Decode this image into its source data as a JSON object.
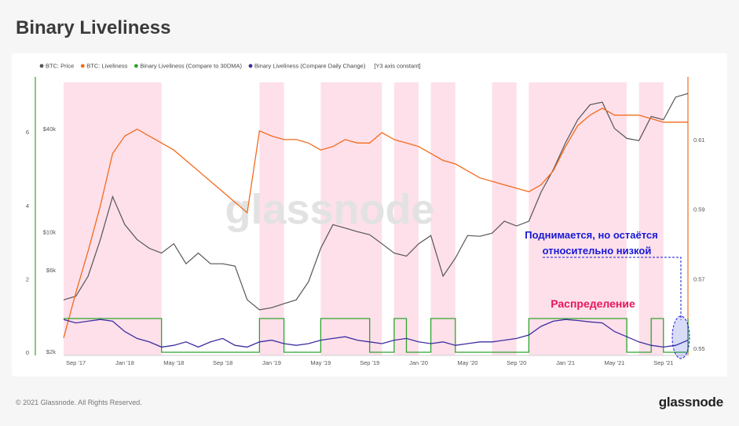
{
  "page": {
    "title": "Binary Liveliness",
    "copyright": "© 2021 Glassnode. All Rights Reserved.",
    "brand": "glassnode",
    "watermark": "glassnode"
  },
  "chart_data": {
    "type": "line",
    "title": "Binary Liveliness",
    "legend": {
      "placement": "top-left",
      "entries": [
        {
          "name": "BTC: Price",
          "color": "#555555"
        },
        {
          "name": "BTC: Liveliness",
          "color": "#f26b1d"
        },
        {
          "name": "Binary Liveliness (Compare to 30DMA)",
          "color": "#2fa32f"
        },
        {
          "name": "Binary Liveliness (Compare Daily Change)",
          "color": "#3d2ea0"
        }
      ],
      "note": "[Y3 axis constant]"
    },
    "x_ticks": [
      "Sep '17",
      "Jan '18",
      "May '18",
      "Sep '18",
      "Jan '19",
      "May '19",
      "Sep '19",
      "Jan '20",
      "May '20",
      "Sep '20",
      "Jan '21",
      "May '21",
      "Sep '21"
    ],
    "y_left_ticks": [
      "0",
      "2",
      "4",
      "6"
    ],
    "y_price_ticks": [
      "$2k",
      "$6k",
      "$10k",
      "$40k"
    ],
    "y_right_ticks": [
      "0.55",
      "0.57",
      "0.59",
      "0.61"
    ],
    "x_range": [
      "2017-08",
      "2021-11"
    ],
    "y_left_range": [
      0,
      7.5
    ],
    "y_right_range": [
      0.548,
      0.628
    ],
    "grid": false,
    "highlight_periods": [
      [
        "2017-08",
        "2018-03"
      ],
      [
        "2018-12",
        "2019-01"
      ],
      [
        "2019-05",
        "2019-09"
      ],
      [
        "2019-11",
        "2019-12"
      ],
      [
        "2020-02",
        "2020-03"
      ],
      [
        "2020-07",
        "2020-08"
      ],
      [
        "2020-10",
        "2021-05"
      ],
      [
        "2021-07",
        "2021-08"
      ]
    ],
    "series": [
      {
        "name": "BTC: Price",
        "x": [
          "2017-08",
          "2017-09",
          "2017-10",
          "2017-11",
          "2017-12",
          "2018-01",
          "2018-02",
          "2018-03",
          "2018-04",
          "2018-05",
          "2018-06",
          "2018-07",
          "2018-08",
          "2018-09",
          "2018-10",
          "2018-11",
          "2018-12",
          "2019-01",
          "2019-02",
          "2019-03",
          "2019-04",
          "2019-05",
          "2019-06",
          "2019-07",
          "2019-08",
          "2019-09",
          "2019-10",
          "2019-11",
          "2019-12",
          "2020-01",
          "2020-02",
          "2020-03",
          "2020-04",
          "2020-05",
          "2020-06",
          "2020-07",
          "2020-08",
          "2020-09",
          "2020-10",
          "2020-11",
          "2020-12",
          "2021-01",
          "2021-02",
          "2021-03",
          "2021-04",
          "2021-05",
          "2021-06",
          "2021-07",
          "2021-08",
          "2021-09",
          "2021-10",
          "2021-11"
        ],
        "values": [
          4000,
          4200,
          5500,
          9000,
          16000,
          11000,
          9000,
          8000,
          7500,
          8500,
          6500,
          7500,
          6500,
          6500,
          6300,
          4000,
          3500,
          3600,
          3800,
          4000,
          5100,
          8000,
          11000,
          10500,
          10000,
          9600,
          8500,
          7500,
          7200,
          8500,
          9500,
          5500,
          7000,
          9500,
          9400,
          9800,
          11500,
          10800,
          11500,
          17000,
          23000,
          33000,
          45000,
          55000,
          57000,
          40000,
          35000,
          34000,
          47000,
          45000,
          61000,
          64000
        ]
      },
      {
        "name": "BTC: Liveliness",
        "x": [
          "2017-08",
          "2017-09",
          "2017-10",
          "2017-11",
          "2017-12",
          "2018-01",
          "2018-02",
          "2018-03",
          "2018-04",
          "2018-05",
          "2018-06",
          "2018-07",
          "2018-08",
          "2018-09",
          "2018-10",
          "2018-11",
          "2018-12",
          "2019-01",
          "2019-02",
          "2019-03",
          "2019-04",
          "2019-05",
          "2019-06",
          "2019-07",
          "2019-08",
          "2019-09",
          "2019-10",
          "2019-11",
          "2019-12",
          "2020-01",
          "2020-02",
          "2020-03",
          "2020-04",
          "2020-05",
          "2020-06",
          "2020-07",
          "2020-08",
          "2020-09",
          "2020-10",
          "2020-11",
          "2020-12",
          "2021-01",
          "2021-02",
          "2021-03",
          "2021-04",
          "2021-05",
          "2021-06",
          "2021-07",
          "2021-08",
          "2021-09",
          "2021-10",
          "2021-11"
        ],
        "values": [
          0.553,
          0.566,
          0.578,
          0.591,
          0.606,
          0.611,
          0.613,
          0.611,
          0.609,
          0.607,
          0.604,
          0.601,
          0.598,
          0.595,
          0.592,
          0.589,
          0.6125,
          0.611,
          0.61,
          0.61,
          0.609,
          0.607,
          0.608,
          0.61,
          0.609,
          0.609,
          0.612,
          0.61,
          0.609,
          0.608,
          0.606,
          0.604,
          0.603,
          0.601,
          0.599,
          0.598,
          0.597,
          0.596,
          0.595,
          0.597,
          0.601,
          0.608,
          0.614,
          0.617,
          0.619,
          0.617,
          0.617,
          0.617,
          0.616,
          0.615,
          0.615,
          0.615
        ]
      },
      {
        "name": "Binary Liveliness (Compare to 30DMA)",
        "x": [
          "2017-08",
          "2017-09",
          "2017-10",
          "2017-11",
          "2017-12",
          "2018-01",
          "2018-02",
          "2018-03",
          "2018-04",
          "2018-05",
          "2018-06",
          "2018-07",
          "2018-08",
          "2018-09",
          "2018-10",
          "2018-11",
          "2018-12",
          "2019-01",
          "2019-02",
          "2019-03",
          "2019-04",
          "2019-05",
          "2019-06",
          "2019-07",
          "2019-08",
          "2019-09",
          "2019-10",
          "2019-11",
          "2019-12",
          "2020-01",
          "2020-02",
          "2020-03",
          "2020-04",
          "2020-05",
          "2020-06",
          "2020-07",
          "2020-08",
          "2020-09",
          "2020-10",
          "2020-11",
          "2020-12",
          "2021-01",
          "2021-02",
          "2021-03",
          "2021-04",
          "2021-05",
          "2021-06",
          "2021-07",
          "2021-08",
          "2021-09",
          "2021-10",
          "2021-11"
        ],
        "values": [
          1,
          1,
          1,
          1,
          1,
          1,
          1,
          1,
          0,
          0,
          0,
          0,
          0,
          0,
          0,
          0,
          1,
          1,
          0,
          0,
          0,
          1,
          1,
          1,
          1,
          0,
          0,
          1,
          0,
          0,
          1,
          1,
          0,
          0,
          0,
          0,
          0,
          0,
          1,
          1,
          1,
          1,
          1,
          1,
          1,
          1,
          0,
          0,
          1,
          0,
          0,
          1
        ]
      },
      {
        "name": "Binary Liveliness (Compare Daily Change)",
        "x": [
          "2017-08",
          "2017-09",
          "2017-10",
          "2017-11",
          "2017-12",
          "2018-01",
          "2018-02",
          "2018-03",
          "2018-04",
          "2018-05",
          "2018-06",
          "2018-07",
          "2018-08",
          "2018-09",
          "2018-10",
          "2018-11",
          "2018-12",
          "2019-01",
          "2019-02",
          "2019-03",
          "2019-04",
          "2019-05",
          "2019-06",
          "2019-07",
          "2019-08",
          "2019-09",
          "2019-10",
          "2019-11",
          "2019-12",
          "2020-01",
          "2020-02",
          "2020-03",
          "2020-04",
          "2020-05",
          "2020-06",
          "2020-07",
          "2020-08",
          "2020-09",
          "2020-10",
          "2020-11",
          "2020-12",
          "2021-01",
          "2021-02",
          "2021-03",
          "2021-04",
          "2021-05",
          "2021-06",
          "2021-07",
          "2021-08",
          "2021-09",
          "2021-10",
          "2021-11"
        ],
        "values": [
          0.95,
          0.85,
          0.9,
          0.95,
          0.9,
          0.6,
          0.4,
          0.3,
          0.15,
          0.2,
          0.3,
          0.15,
          0.3,
          0.4,
          0.2,
          0.15,
          0.3,
          0.35,
          0.25,
          0.2,
          0.25,
          0.35,
          0.4,
          0.45,
          0.35,
          0.3,
          0.25,
          0.35,
          0.4,
          0.3,
          0.25,
          0.3,
          0.2,
          0.25,
          0.3,
          0.3,
          0.35,
          0.4,
          0.5,
          0.75,
          0.9,
          0.95,
          0.92,
          0.88,
          0.85,
          0.6,
          0.45,
          0.3,
          0.2,
          0.15,
          0.2,
          0.35
        ]
      }
    ],
    "annotations": [
      {
        "text": "Поднимается, но остаётся",
        "color": "#1818d6"
      },
      {
        "text": "относительно низкой",
        "color": "#1818d6"
      },
      {
        "text": "Распределение",
        "color": "#e8155f"
      }
    ]
  }
}
